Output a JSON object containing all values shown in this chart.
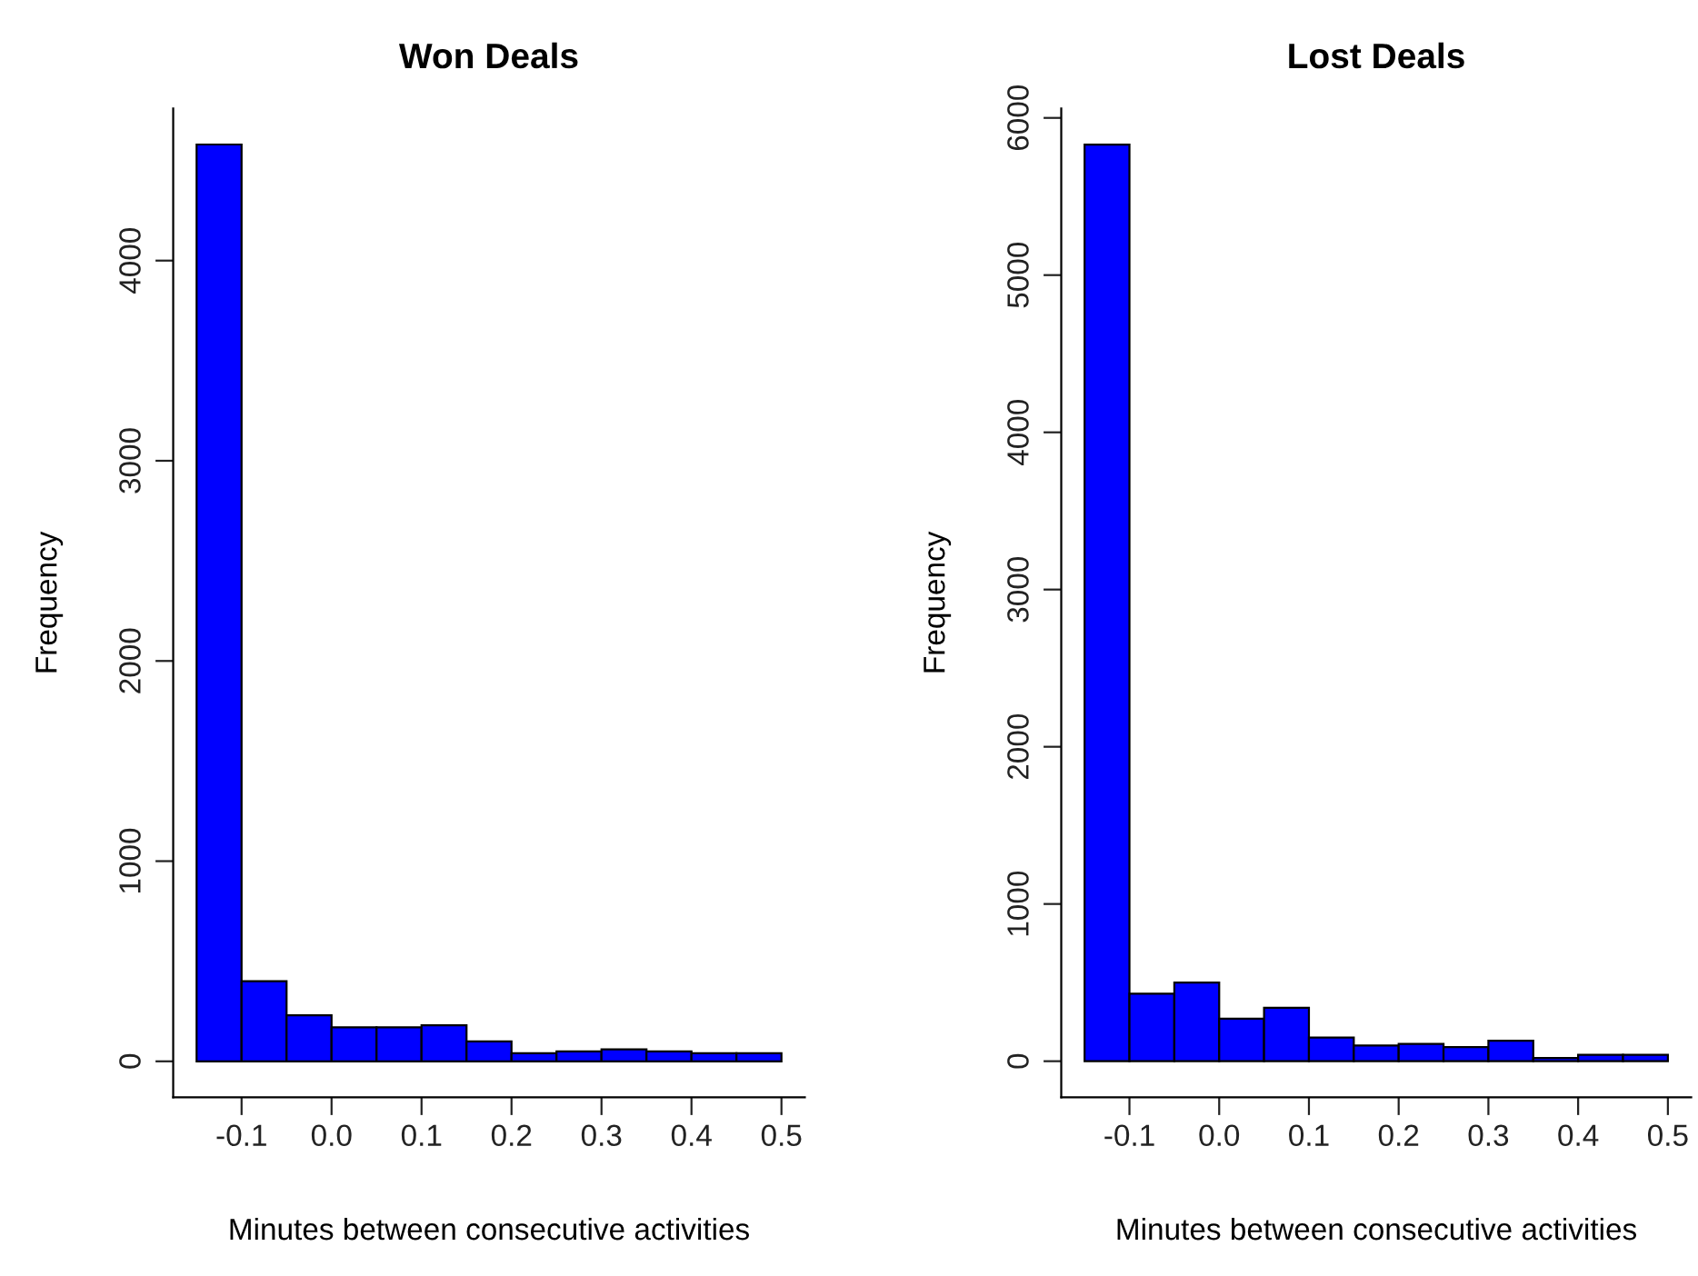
{
  "chart_data": [
    {
      "type": "histogram",
      "title": "Won Deals",
      "xlabel": "Minutes between consecutive activities",
      "ylabel": "Frequency",
      "color": "#0000ff",
      "bins": [
        -0.15,
        -0.1,
        -0.05,
        0.0,
        0.05,
        0.1,
        0.15,
        0.2,
        0.25,
        0.3,
        0.35,
        0.4,
        0.45,
        0.5
      ],
      "values": [
        4580,
        400,
        230,
        170,
        170,
        180,
        100,
        40,
        50,
        60,
        50,
        40,
        40
      ],
      "xlim": [
        -0.176,
        0.526
      ],
      "ylim": [
        -180,
        4760
      ],
      "xticks": [
        -0.1,
        {
          "value": 0,
          "label": "0.0"
        },
        0.1,
        0.2,
        0.3,
        0.4,
        0.5
      ],
      "yticks": [
        0,
        1000,
        2000,
        3000,
        4000
      ]
    },
    {
      "type": "histogram",
      "title": "Lost Deals",
      "xlabel": "Minutes between consecutive activities",
      "ylabel": "Frequency",
      "color": "#0000ff",
      "bins": [
        -0.15,
        -0.1,
        -0.05,
        0.0,
        0.05,
        0.1,
        0.15,
        0.2,
        0.25,
        0.3,
        0.35,
        0.4,
        0.45,
        0.5
      ],
      "values": [
        5830,
        430,
        500,
        270,
        340,
        150,
        100,
        110,
        90,
        130,
        20,
        40,
        40
      ],
      "xlim": [
        -0.176,
        0.526
      ],
      "ylim": [
        -230,
        6060
      ],
      "xticks": [
        -0.1,
        {
          "value": 0,
          "label": "0.0"
        },
        0.1,
        0.2,
        0.3,
        0.4,
        0.5
      ],
      "yticks": [
        0,
        1000,
        2000,
        3000,
        4000,
        5000,
        6000
      ]
    }
  ]
}
